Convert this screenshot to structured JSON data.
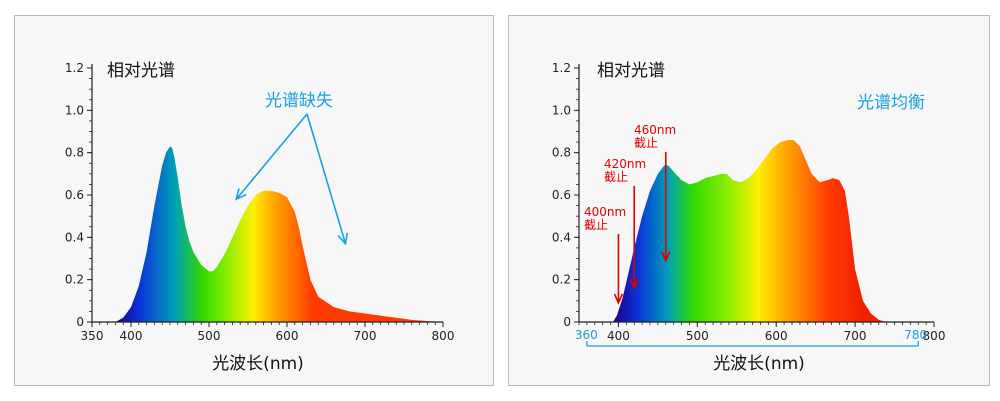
{
  "colors": {
    "axis": "#222222",
    "annotation_blue": "#1aa0e0",
    "cutoff_red": "#e00000",
    "panel_bg": "#f7f7f7",
    "panel_border": "#b9b9b9"
  },
  "chart_data": [
    {
      "type": "area",
      "panel": "left",
      "ylabel": "相对光谱",
      "xlabel": "光波长(nm)",
      "xlim": [
        350,
        800
      ],
      "ylim": [
        0,
        1.2
      ],
      "xticks": [
        "350",
        "400",
        "500",
        "600",
        "700",
        "800"
      ],
      "xtick_values": [
        350,
        400,
        500,
        600,
        700,
        800
      ],
      "yticks": [
        "0",
        "0.2",
        "0.4",
        "0.6",
        "0.8",
        "1.0",
        "1.2"
      ],
      "ytick_values": [
        0,
        0.2,
        0.4,
        0.6,
        0.8,
        1.0,
        1.2
      ],
      "grid": false,
      "fill": "visible-spectrum gradient",
      "x": [
        380,
        390,
        400,
        410,
        420,
        430,
        440,
        445,
        450,
        453,
        456,
        460,
        465,
        470,
        475,
        480,
        490,
        500,
        505,
        510,
        520,
        530,
        540,
        550,
        560,
        570,
        580,
        590,
        600,
        610,
        615,
        620,
        630,
        640,
        660,
        680,
        700,
        720,
        740,
        760,
        780,
        800
      ],
      "y": [
        0.0,
        0.02,
        0.07,
        0.17,
        0.33,
        0.55,
        0.74,
        0.8,
        0.83,
        0.82,
        0.77,
        0.68,
        0.55,
        0.45,
        0.38,
        0.33,
        0.27,
        0.24,
        0.24,
        0.26,
        0.32,
        0.4,
        0.48,
        0.55,
        0.6,
        0.62,
        0.62,
        0.61,
        0.59,
        0.52,
        0.45,
        0.36,
        0.2,
        0.12,
        0.07,
        0.05,
        0.04,
        0.03,
        0.02,
        0.01,
        0.005,
        0.0
      ],
      "annotation": {
        "text": "光谱缺失",
        "arrow_targets": [
          [
            535,
            0.58
          ],
          [
            675,
            0.37
          ]
        ]
      }
    },
    {
      "type": "area",
      "panel": "right",
      "ylabel": "相对光谱",
      "xlabel": "光波长(nm)",
      "xlim": [
        350,
        800
      ],
      "ylim": [
        0,
        1.2
      ],
      "xticks": [
        "400",
        "500",
        "600",
        "700",
        "800"
      ],
      "xtick_values": [
        400,
        500,
        600,
        700,
        800
      ],
      "yticks": [
        "0",
        "0.2",
        "0.4",
        "0.6",
        "0.8",
        "1.0",
        "1.2"
      ],
      "ytick_values": [
        0,
        0.2,
        0.4,
        0.6,
        0.8,
        1.0,
        1.2
      ],
      "grid": false,
      "fill": "visible-spectrum gradient",
      "x": [
        393,
        398,
        405,
        412,
        420,
        430,
        440,
        450,
        458,
        463,
        470,
        480,
        490,
        500,
        510,
        520,
        530,
        537,
        545,
        555,
        565,
        575,
        585,
        595,
        605,
        615,
        622,
        630,
        638,
        645,
        655,
        665,
        672,
        680,
        687,
        692,
        700,
        710,
        720,
        730,
        740
      ],
      "y": [
        0.0,
        0.03,
        0.11,
        0.22,
        0.35,
        0.5,
        0.62,
        0.7,
        0.74,
        0.74,
        0.71,
        0.67,
        0.65,
        0.66,
        0.68,
        0.69,
        0.7,
        0.7,
        0.67,
        0.66,
        0.68,
        0.72,
        0.77,
        0.82,
        0.85,
        0.86,
        0.86,
        0.83,
        0.76,
        0.7,
        0.66,
        0.67,
        0.68,
        0.67,
        0.62,
        0.5,
        0.25,
        0.1,
        0.04,
        0.01,
        0.0
      ],
      "annotation": {
        "text": "光谱均衡"
      },
      "cutoffs": [
        {
          "label_nm": "400nm",
          "label_cut": "截止",
          "x": 400,
          "y_tip": 0.09
        },
        {
          "label_nm": "420nm",
          "label_cut": "截止",
          "x": 420,
          "y_tip": 0.16
        },
        {
          "label_nm": "460nm",
          "label_cut": "截止",
          "x": 460,
          "y_tip": 0.29
        }
      ],
      "range": {
        "start_label": "360",
        "end_label": "780",
        "start": 360,
        "end": 780
      }
    }
  ]
}
